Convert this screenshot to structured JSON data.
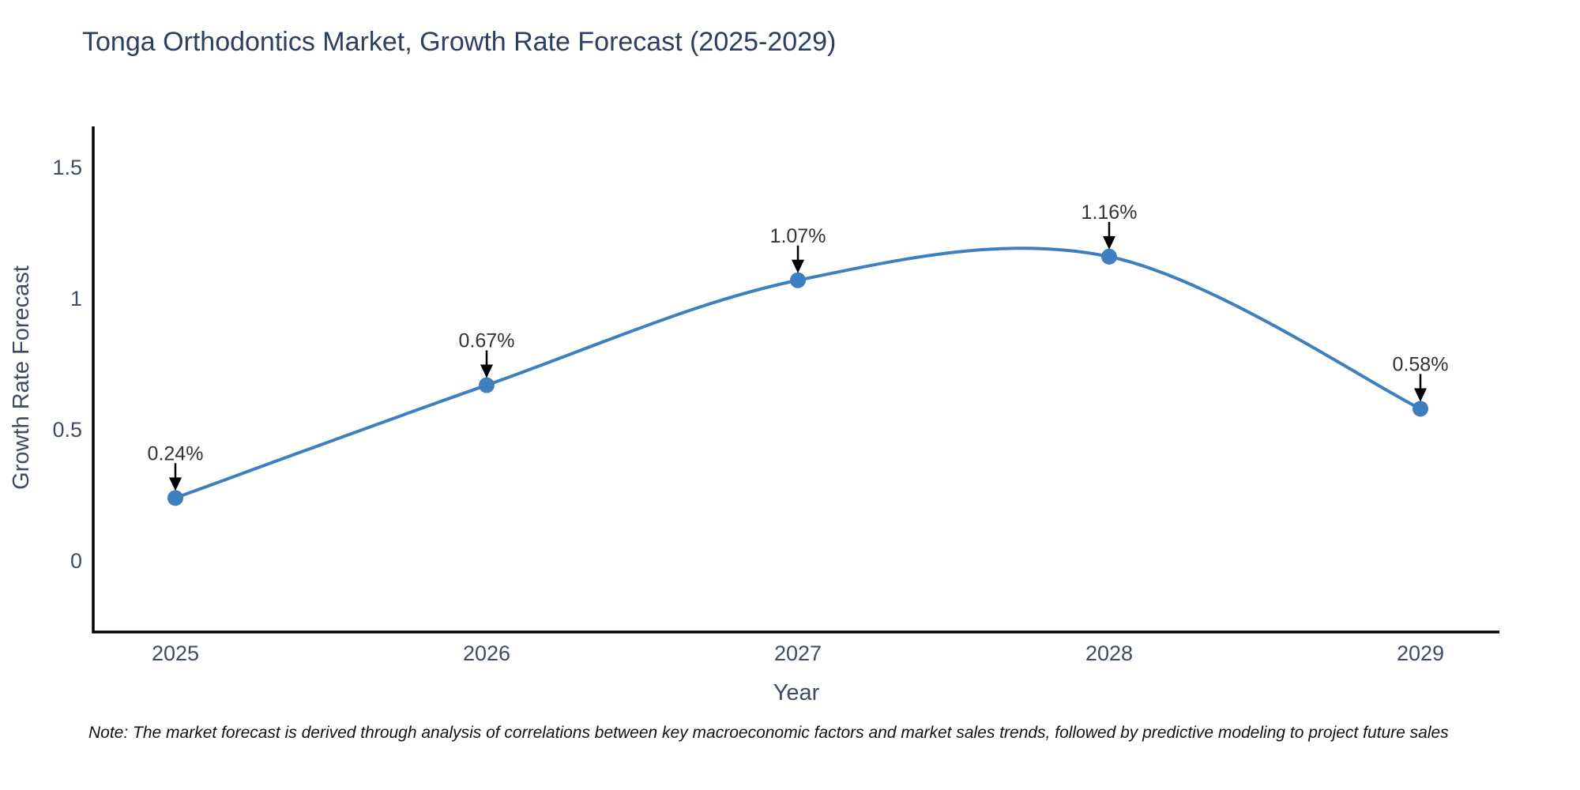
{
  "title": "Tonga Orthodontics Market, Growth Rate Forecast (2025-2029)",
  "note": "Note: The market forecast is derived through analysis of correlations between key macroeconomic factors and market sales trends, followed by predictive modeling to project future sales",
  "chart_data": {
    "type": "line",
    "title": "Tonga Orthodontics Market, Growth Rate Forecast (2025-2029)",
    "x": [
      "2025",
      "2026",
      "2027",
      "2028",
      "2029"
    ],
    "values": [
      0.24,
      0.67,
      1.07,
      1.16,
      0.58
    ],
    "point_labels": [
      "0.24%",
      "0.67%",
      "1.07%",
      "1.16%",
      "0.58%"
    ],
    "xlabel": "Year",
    "ylabel": "Growth Rate Forecast",
    "yticks": [
      0,
      0.5,
      1,
      1.5
    ],
    "ytick_labels": [
      "0",
      "0.5",
      "1",
      "1.5"
    ],
    "ylim": [
      -0.27,
      1.66
    ],
    "line_shape": "spline",
    "grid": false,
    "legend_position": "none",
    "colors": {
      "line": "#3E7FBE",
      "marker": "#3E7FBE",
      "axis_line": "#000000",
      "tick_text": "#3F4B63",
      "axis_title_text": "#3F4B63",
      "title_text": "#2d3e5f",
      "annotation_text": "#333333",
      "annotation_arrow": "#000000",
      "background": "#ffffff"
    }
  }
}
